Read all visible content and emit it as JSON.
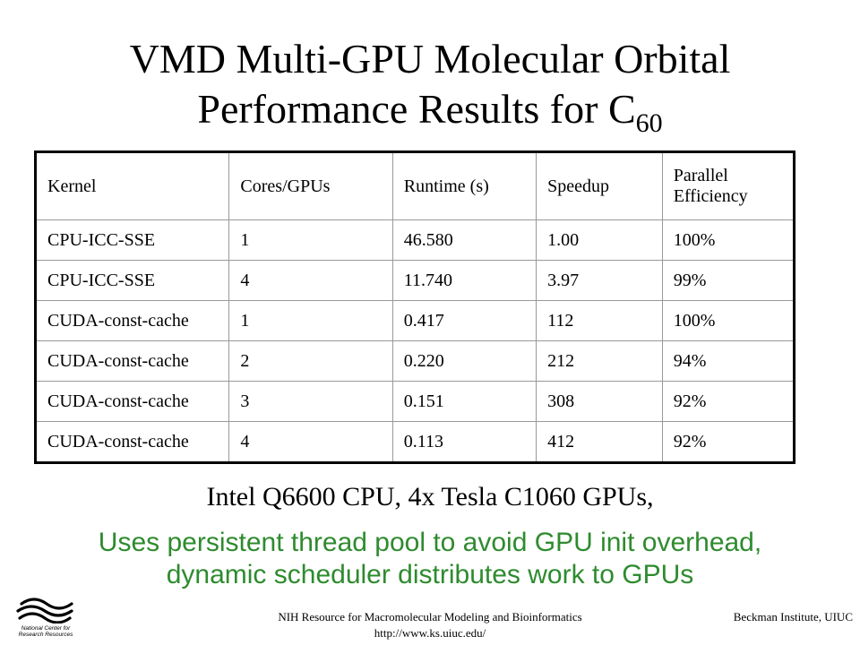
{
  "slide": {
    "title_line1": "VMD Multi-GPU Molecular Orbital",
    "title_line2": "Performance Results for C",
    "title_subscript": "60"
  },
  "table": {
    "headers": [
      "Kernel",
      "Cores/GPUs",
      "Runtime (s)",
      "Speedup",
      "Parallel Efficiency"
    ],
    "rows": [
      [
        "CPU-ICC-SSE",
        "1",
        "46.580",
        "1.00",
        "100%"
      ],
      [
        "CPU-ICC-SSE",
        "4",
        "11.740",
        "3.97",
        "99%"
      ],
      [
        "CUDA-const-cache",
        "1",
        "0.417",
        "112",
        "100%"
      ],
      [
        "CUDA-const-cache",
        "2",
        "0.220",
        "212",
        "94%"
      ],
      [
        "CUDA-const-cache",
        "3",
        "0.151",
        "308",
        "92%"
      ],
      [
        "CUDA-const-cache",
        "4",
        "0.113",
        "412",
        "92%"
      ]
    ]
  },
  "subtitle": "Intel Q6600 CPU, 4x Tesla C1060 GPUs,",
  "note_line1": "Uses persistent thread pool to avoid GPU init overhead,",
  "note_line2": "dynamic scheduler distributes work to GPUs",
  "note_color": "#2e8b2e",
  "logo": {
    "icon": "ncsa-logo-icon",
    "text_line1": "National Center for",
    "text_line2": "Research Resources"
  },
  "footer": {
    "center_line1": "NIH Resource for Macromolecular Modeling and Bioinformatics",
    "center_line2": "http://www.ks.uiuc.edu/",
    "right": "Beckman Institute, UIUC"
  }
}
